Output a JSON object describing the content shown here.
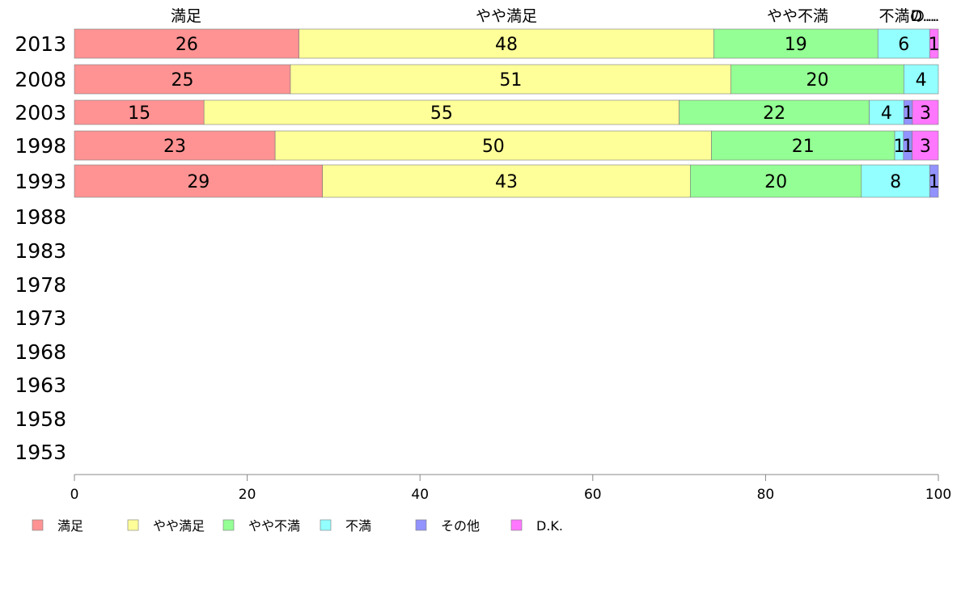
{
  "chart_data": {
    "type": "bar",
    "orientation": "horizontal",
    "stacked": true,
    "title": "",
    "xlabel": "",
    "ylabel": "",
    "xlim": [
      0,
      100
    ],
    "xticks": [
      0,
      20,
      40,
      60,
      80,
      100
    ],
    "grid": false,
    "legend": "bottom",
    "categories": [
      "2013",
      "2008",
      "2003",
      "1998",
      "1993",
      "1988",
      "1983",
      "1978",
      "1973",
      "1968",
      "1963",
      "1958",
      "1953"
    ],
    "top_labels": [
      "満足",
      "やや満足",
      "やや不満",
      "不満の...",
      "D..."
    ],
    "series": [
      {
        "name": "満足",
        "color": "#ff9393",
        "values": [
          26,
          25,
          15,
          23,
          29,
          null,
          null,
          null,
          null,
          null,
          null,
          null,
          null
        ]
      },
      {
        "name": "やや満足",
        "color": "#ffff99",
        "values": [
          48,
          51,
          55,
          50,
          43,
          null,
          null,
          null,
          null,
          null,
          null,
          null,
          null
        ]
      },
      {
        "name": "やや不満",
        "color": "#94ff94",
        "values": [
          19,
          20,
          22,
          21,
          20,
          null,
          null,
          null,
          null,
          null,
          null,
          null,
          null
        ]
      },
      {
        "name": "不満",
        "color": "#93ffff",
        "values": [
          6,
          4,
          4,
          1,
          8,
          null,
          null,
          null,
          null,
          null,
          null,
          null,
          null
        ]
      },
      {
        "name": "その他",
        "color": "#9393ff",
        "values": [
          0,
          0,
          1,
          1,
          1,
          null,
          null,
          null,
          null,
          null,
          null,
          null,
          null
        ]
      },
      {
        "name": "D.K.",
        "color": "#ff77ff",
        "values": [
          1,
          0,
          3,
          3,
          0,
          null,
          null,
          null,
          null,
          null,
          null,
          null,
          null
        ]
      }
    ]
  }
}
